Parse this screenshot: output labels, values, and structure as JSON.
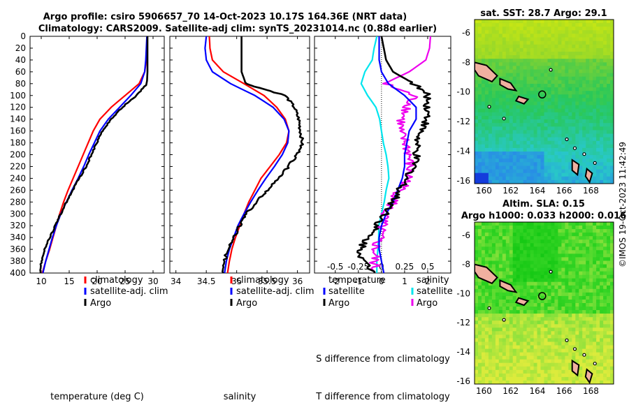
{
  "title_line1": "Argo profile: csiro 5906657_70 14-Oct-2023 10.17S 164.36E (NRT data)",
  "title_line2": "Climatology: CARS2009. Satellite-adj clim: synTS_20231014.nc (0.88d earlier)",
  "colors": {
    "climatology": "#ff0000",
    "satellite": "#0000ff",
    "argo": "#000000",
    "temp_diff": "#00e5ee",
    "sal_diff": "#ee00ee",
    "land": "#f0b0a0"
  },
  "chart_data": [
    {
      "type": "line",
      "name": "temperature-profile",
      "xlabel": "temperature (deg C)",
      "xlim": [
        8,
        32
      ],
      "xticks": [
        10,
        15,
        20,
        25,
        30
      ],
      "ylim": [
        400,
        0
      ],
      "yticks": [
        0,
        20,
        40,
        60,
        80,
        100,
        120,
        140,
        160,
        180,
        200,
        220,
        240,
        260,
        280,
        300,
        320,
        340,
        360,
        380,
        400
      ],
      "legend": [
        "climatology",
        "satellite-adj. clim",
        "Argo"
      ],
      "depth": [
        0,
        20,
        40,
        60,
        80,
        100,
        120,
        140,
        160,
        180,
        200,
        220,
        240,
        260,
        280,
        300,
        320,
        340,
        360,
        380,
        400
      ],
      "series": [
        {
          "name": "climatology",
          "values": [
            29.0,
            28.9,
            28.8,
            28.5,
            27.5,
            25.0,
            22.5,
            20.5,
            19.3,
            18.4,
            17.5,
            16.6,
            15.7,
            14.8,
            14.0,
            13.3,
            12.7,
            12.1,
            11.5,
            10.8,
            10.2
          ]
        },
        {
          "name": "satellite-adj. clim",
          "values": [
            28.9,
            28.8,
            28.7,
            28.5,
            27.8,
            26.0,
            24.0,
            22.0,
            20.5,
            19.5,
            18.5,
            17.6,
            16.6,
            15.5,
            14.5,
            13.5,
            12.7,
            12.0,
            11.4,
            10.8,
            10.3
          ]
        },
        {
          "name": "Argo",
          "values": [
            29.0,
            29.0,
            29.0,
            29.0,
            28.9,
            27.0,
            24.5,
            22.5,
            21.0,
            19.9,
            19.0,
            18.0,
            16.8,
            15.6,
            14.5,
            13.5,
            12.5,
            11.5,
            10.6,
            10.0,
            9.9
          ]
        }
      ]
    },
    {
      "type": "line",
      "name": "salinity-profile",
      "xlabel": "salinity",
      "xlim": [
        33.9,
        36.2
      ],
      "xticks": [
        34,
        34.5,
        35,
        35.5,
        36
      ],
      "ylim": [
        400,
        0
      ],
      "legend": [
        "climatology",
        "satellite-adj. clim",
        "Argo"
      ],
      "depth": [
        0,
        20,
        40,
        60,
        80,
        100,
        120,
        140,
        160,
        180,
        200,
        220,
        240,
        260,
        280,
        300,
        320,
        340,
        360,
        380,
        400
      ],
      "series": [
        {
          "name": "climatology",
          "values": [
            34.55,
            34.56,
            34.6,
            34.78,
            35.12,
            35.45,
            35.66,
            35.8,
            35.86,
            35.82,
            35.7,
            35.55,
            35.4,
            35.3,
            35.2,
            35.12,
            35.05,
            34.98,
            34.92,
            34.88,
            34.85
          ]
        },
        {
          "name": "satellite-adj. clim",
          "values": [
            34.5,
            34.48,
            34.5,
            34.6,
            34.9,
            35.3,
            35.6,
            35.78,
            35.86,
            35.84,
            35.75,
            35.62,
            35.48,
            35.35,
            35.23,
            35.12,
            35.02,
            34.95,
            34.88,
            34.83,
            34.8
          ]
        },
        {
          "name": "Argo",
          "values": [
            35.08,
            35.08,
            35.08,
            35.08,
            35.15,
            35.8,
            35.95,
            36.02,
            36.05,
            36.08,
            36.0,
            35.85,
            35.7,
            35.5,
            35.33,
            35.15,
            35.05,
            34.95,
            34.85,
            34.8,
            34.78
          ]
        }
      ]
    },
    {
      "type": "line",
      "name": "difference-profile",
      "xlabel": "T difference from climatology",
      "xlim": [
        -2.9,
        3.0
      ],
      "xticks": [
        -2,
        -1,
        0,
        1,
        2
      ],
      "top_xlabel": "S difference from climatology",
      "top_xticks": [
        "-0.5",
        "-0.25",
        "0",
        "0.25",
        "0.5"
      ],
      "ylim": [
        400,
        0
      ],
      "legend_temperature": [
        "temperature",
        "satellite",
        "Argo"
      ],
      "legend_salinity": [
        "salinity",
        "satellite",
        "Argo"
      ],
      "depth": [
        0,
        20,
        40,
        60,
        80,
        100,
        120,
        140,
        160,
        180,
        200,
        220,
        240,
        260,
        280,
        300,
        320,
        340,
        360,
        380,
        400
      ],
      "series": [
        {
          "name": "temperature satellite",
          "values": [
            -0.1,
            -0.1,
            -0.1,
            0.0,
            0.3,
            1.0,
            1.5,
            1.5,
            1.2,
            1.1,
            1.0,
            1.0,
            0.9,
            0.7,
            0.5,
            0.2,
            0.0,
            -0.1,
            -0.1,
            0.0,
            0.1
          ]
        },
        {
          "name": "temperature Argo",
          "values": [
            0.0,
            0.1,
            0.2,
            0.5,
            1.4,
            2.0,
            2.0,
            2.0,
            1.7,
            1.5,
            1.5,
            1.4,
            1.1,
            0.8,
            0.5,
            0.2,
            -0.2,
            -0.6,
            -0.9,
            -0.8,
            -0.3
          ]
        },
        {
          "name": "salinity satellite",
          "values": [
            -0.05,
            -0.08,
            -0.1,
            -0.18,
            -0.22,
            -0.15,
            -0.06,
            -0.02,
            0.0,
            0.02,
            0.05,
            0.07,
            0.08,
            0.05,
            0.03,
            0.0,
            -0.03,
            -0.03,
            -0.04,
            -0.05,
            -0.05
          ]
        },
        {
          "name": "salinity Argo",
          "values": [
            0.53,
            0.52,
            0.48,
            0.3,
            0.03,
            0.35,
            0.29,
            0.22,
            0.19,
            0.26,
            0.3,
            0.3,
            0.3,
            0.2,
            0.13,
            0.03,
            0.0,
            -0.03,
            -0.07,
            -0.08,
            -0.07
          ]
        }
      ]
    },
    {
      "type": "heatmap",
      "name": "sst-map",
      "title": "sat. SST: 28.7 Argo: 29.1",
      "xticks": [
        160,
        162,
        164,
        166,
        168
      ],
      "yticks": [
        -6,
        -8,
        -10,
        -12,
        -14,
        -16
      ],
      "xlim": [
        159.3,
        169.7
      ],
      "ylim": [
        -16.2,
        -5.1
      ],
      "argo_position": [
        164.36,
        -10.17
      ]
    },
    {
      "type": "heatmap",
      "name": "sla-map",
      "title": "Altim. SLA: 0.15",
      "subtitle": "Argo h1000: 0.033 h2000: 0.016",
      "xticks": [
        160,
        162,
        164,
        166,
        168
      ],
      "yticks": [
        -6,
        -8,
        -10,
        -12,
        -14,
        -16
      ],
      "xlim": [
        159.3,
        169.7
      ],
      "ylim": [
        -16.2,
        -5.1
      ],
      "argo_position": [
        164.36,
        -10.17
      ]
    }
  ],
  "watermark": "©IMOS 19-Oct-2023 11:42:49"
}
